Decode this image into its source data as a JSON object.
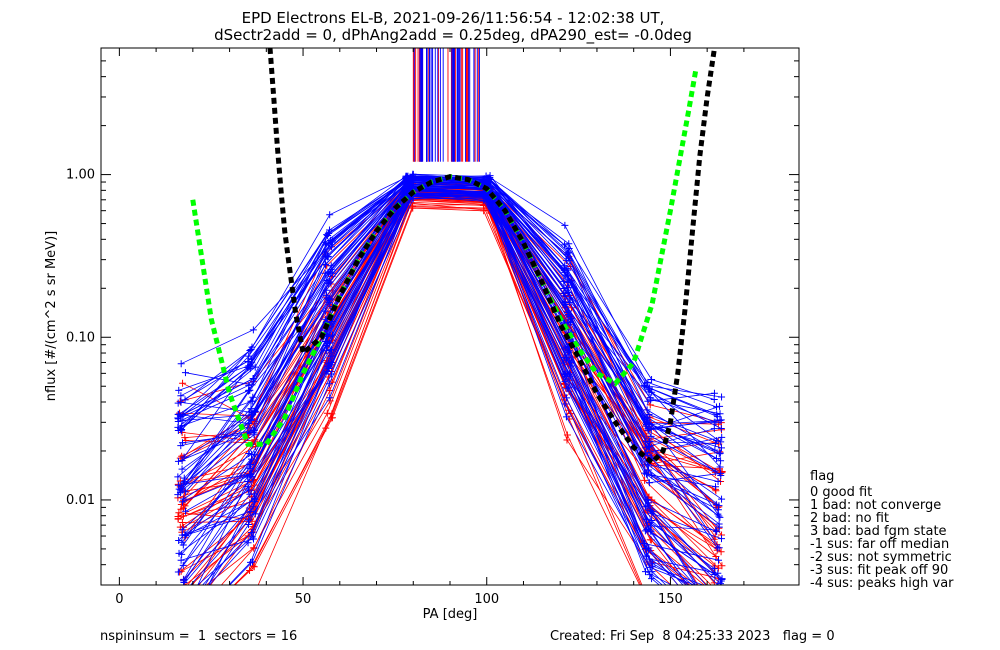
{
  "chart_data": {
    "type": "line",
    "title_line1": "EPD Electrons EL-B, 2021-09-26/11:56:54 - 12:02:38 UT,",
    "title_line2": "dSectr2add = 0, dPhAng2add = 0.25deg, dPA290_est=  -0.0deg",
    "xlabel": "PA [deg]",
    "ylabel": "nflux [#/(cm^2 s sr MeV)]",
    "xlim": [
      -5,
      185
    ],
    "ylim": [
      0.003,
      6.0
    ],
    "yscale": "log",
    "x_ticks": [
      0,
      50,
      100,
      150
    ],
    "x_tick_labels": [
      "0",
      "50",
      "100",
      "150"
    ],
    "y_ticks": [
      0.01,
      0.1,
      1.0
    ],
    "y_tick_labels": [
      "0.01",
      "0.10",
      "1.00"
    ],
    "grid": false,
    "colors": {
      "red": "#ff0000",
      "blue": "#0000ff",
      "green": "#00ff00",
      "black": "#000000"
    },
    "legend": {
      "placement": "right",
      "title": "flag",
      "entries": [
        " 0 good fit",
        " 1 bad: not converge",
        " 2 bad: no fit",
        " 3 bad: bad fgm state",
        "-1 sus: far off median",
        "-2 sus: not symmetric",
        "-3 sus: fit peak off 90",
        "-4 sus: peaks high var"
      ]
    },
    "sample_pa": [
      17,
      36,
      57,
      79,
      100,
      122,
      144,
      163
    ],
    "series_ensemble": {
      "note_colors": [
        "red",
        "blue"
      ],
      "red_profile_nflux": [
        0.006,
        0.012,
        0.09,
        0.75,
        0.72,
        0.08,
        0.011,
        0.005
      ],
      "blue_profile_nflux": [
        0.009,
        0.02,
        0.16,
        0.85,
        0.82,
        0.12,
        0.013,
        0.006
      ]
    },
    "series": [
      {
        "color": "green",
        "style": "dashed",
        "x": [
          20,
          25,
          30,
          35,
          40,
          45,
          50,
          55,
          60,
          65,
          70,
          75,
          80,
          85,
          90,
          95,
          100,
          105,
          110,
          115,
          120,
          125,
          130,
          135,
          140,
          145,
          150,
          155,
          157
        ],
        "y": [
          0.7,
          0.13,
          0.045,
          0.022,
          0.022,
          0.032,
          0.06,
          0.1,
          0.18,
          0.3,
          0.45,
          0.62,
          0.78,
          0.9,
          0.97,
          0.93,
          0.82,
          0.6,
          0.38,
          0.22,
          0.13,
          0.085,
          0.06,
          0.052,
          0.07,
          0.16,
          0.6,
          2.5,
          4.5
        ]
      },
      {
        "color": "black",
        "style": "dashed",
        "x": [
          41,
          42,
          43,
          44,
          45,
          46,
          48,
          50,
          55,
          60,
          65,
          70,
          75,
          80,
          85,
          90,
          95,
          100,
          105,
          110,
          115,
          120,
          125,
          130,
          135,
          140,
          145,
          148,
          150,
          152,
          154,
          156,
          158,
          160,
          162
        ],
        "y": [
          6.0,
          3.0,
          1.5,
          0.8,
          0.45,
          0.3,
          0.14,
          0.08,
          0.1,
          0.18,
          0.3,
          0.45,
          0.62,
          0.78,
          0.9,
          0.97,
          0.93,
          0.82,
          0.6,
          0.38,
          0.22,
          0.12,
          0.075,
          0.045,
          0.03,
          0.021,
          0.017,
          0.02,
          0.03,
          0.06,
          0.15,
          0.45,
          1.3,
          3.0,
          6.0
        ]
      }
    ]
  },
  "footer": {
    "left": "nspininsum =  1  sectors = 16",
    "right": "Created: Fri Sep  8 04:25:33 2023   flag = 0"
  }
}
